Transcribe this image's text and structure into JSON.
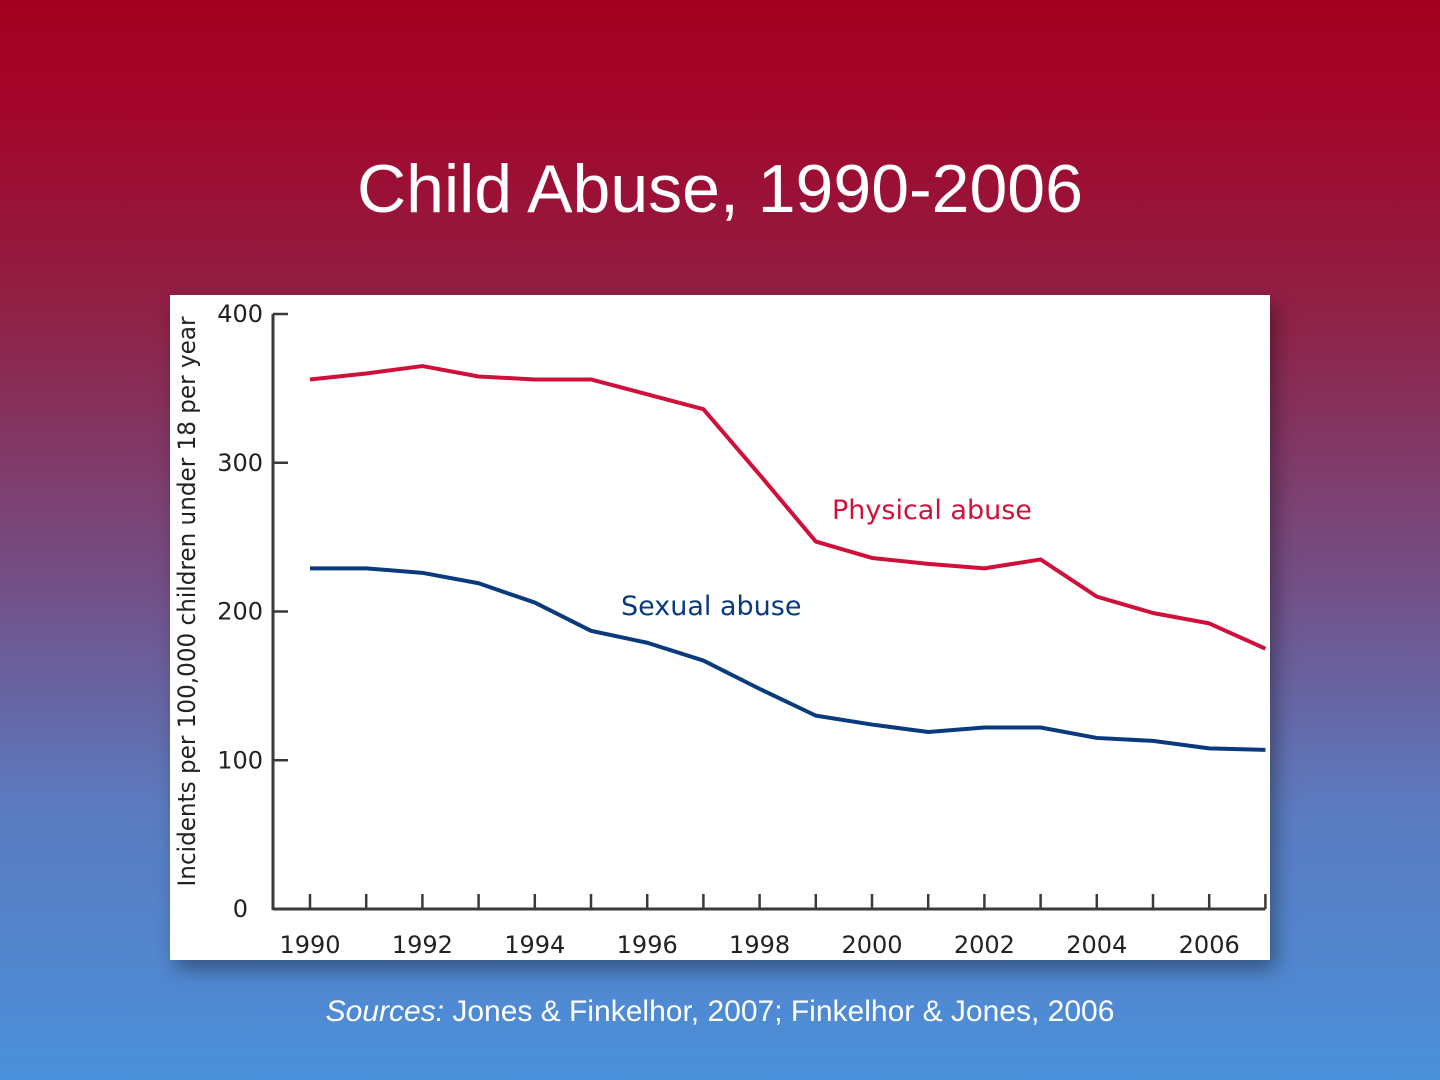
{
  "slide": {
    "title": "Child Abuse, 1990-2006",
    "source_label": "Sources:",
    "source_text": " Jones & Finkelhor, 2007; Finkelhor & Jones, 2006"
  },
  "chart_data": {
    "type": "line",
    "title": "Child Abuse, 1990-2006",
    "xlabel": "",
    "ylabel": "Incidents per 100,000 children under 18 per year",
    "ylim": [
      0,
      400
    ],
    "xlim": [
      1990,
      2007
    ],
    "grid": false,
    "yticks": [
      0,
      100,
      200,
      300,
      400
    ],
    "xtick_labels": [
      "1990",
      "1992",
      "1994",
      "1996",
      "1998",
      "2000",
      "2002",
      "2004",
      "2006"
    ],
    "x": [
      1990,
      1991,
      1992,
      1993,
      1994,
      1995,
      1996,
      1997,
      1998,
      1999,
      2000,
      2001,
      2002,
      2003,
      2004,
      2005,
      2006,
      2007
    ],
    "series": [
      {
        "name": "Physical abuse",
        "color": "#d0103a",
        "values": [
          356,
          360,
          365,
          358,
          356,
          356,
          346,
          336,
          292,
          247,
          236,
          232,
          229,
          235,
          210,
          199,
          192,
          175
        ]
      },
      {
        "name": "Sexual abuse",
        "color": "#0a3a7e",
        "values": [
          229,
          229,
          226,
          219,
          206,
          187,
          179,
          167,
          148,
          130,
          124,
          119,
          122,
          122,
          115,
          113,
          108,
          107
        ]
      }
    ]
  }
}
